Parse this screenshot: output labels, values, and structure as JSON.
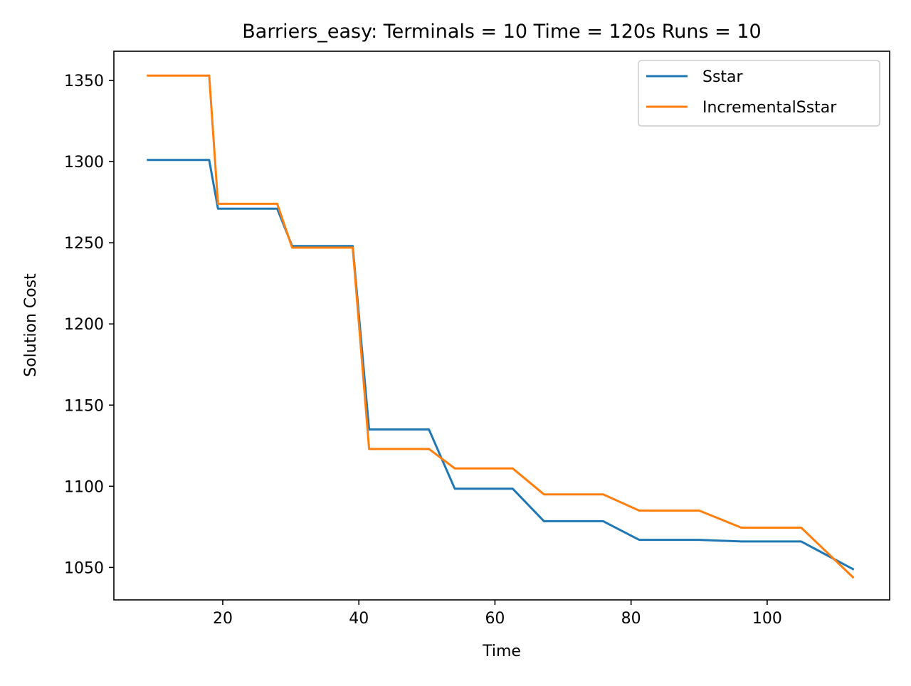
{
  "chart_data": {
    "type": "line",
    "title": "Barriers_easy:  Terminals = 10  Time = 120s  Runs = 10",
    "xlabel": "Time",
    "ylabel": "Solution Cost",
    "xlim": [
      4,
      118
    ],
    "ylim": [
      1030,
      1368
    ],
    "xticks": [
      20,
      40,
      60,
      80,
      100
    ],
    "yticks": [
      1050,
      1100,
      1150,
      1200,
      1250,
      1300,
      1350
    ],
    "grid": false,
    "legend_position": "top-right",
    "series": [
      {
        "name": "Sstar",
        "color": "#1f77b4",
        "x": [
          9.0,
          18.0,
          19.3,
          28.0,
          30.2,
          39.1,
          41.5,
          50.3,
          54.1,
          62.6,
          67.2,
          75.9,
          81.2,
          90.0,
          96.2,
          105.0,
          112.6
        ],
        "y": [
          1301,
          1301,
          1271,
          1271,
          1248,
          1248,
          1135,
          1135,
          1098.5,
          1098.5,
          1078.5,
          1078.5,
          1067,
          1067,
          1066,
          1066,
          1049
        ]
      },
      {
        "name": "IncrementalSstar",
        "color": "#ff7f0e",
        "x": [
          9.0,
          18.0,
          19.3,
          28.0,
          30.2,
          39.1,
          41.5,
          50.3,
          54.1,
          62.6,
          67.2,
          75.9,
          81.2,
          90.0,
          96.2,
          105.0,
          112.6
        ],
        "y": [
          1353,
          1353,
          1274,
          1274,
          1247,
          1247,
          1123,
          1123,
          1111,
          1111,
          1095,
          1095,
          1085,
          1085,
          1074.5,
          1074.5,
          1044
        ]
      }
    ]
  }
}
